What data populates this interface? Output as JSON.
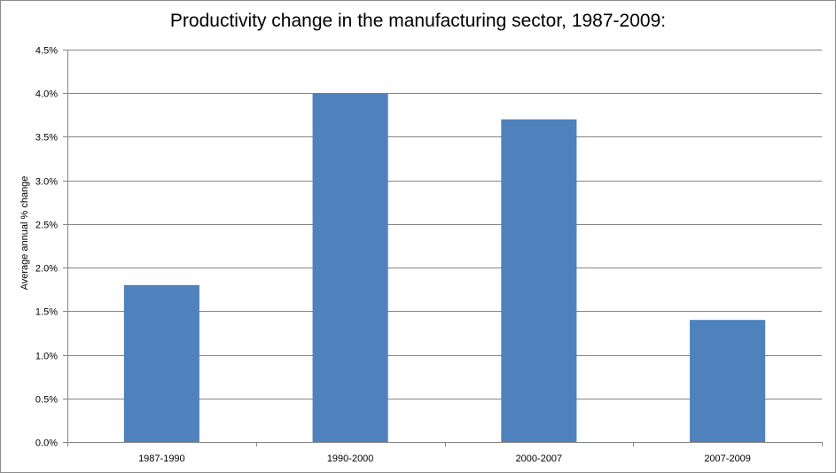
{
  "chart_data": {
    "type": "bar",
    "title": "Productivity change in the manufacturing sector, 1987-2009:",
    "xlabel": "",
    "ylabel": "Average annual % change",
    "categories": [
      "1987-1990",
      "1990-2000",
      "2000-2007",
      "2007-2009"
    ],
    "values": [
      1.8,
      4.0,
      3.7,
      1.4
    ],
    "ylim": [
      0,
      4.5
    ],
    "yticks": [
      "0.0%",
      "0.5%",
      "1.0%",
      "1.5%",
      "2.0%",
      "2.5%",
      "3.0%",
      "3.5%",
      "4.0%",
      "4.5%"
    ],
    "grid": true,
    "legend": "none",
    "bar_color": "#4f81bd",
    "gridline_color": "#868686"
  }
}
